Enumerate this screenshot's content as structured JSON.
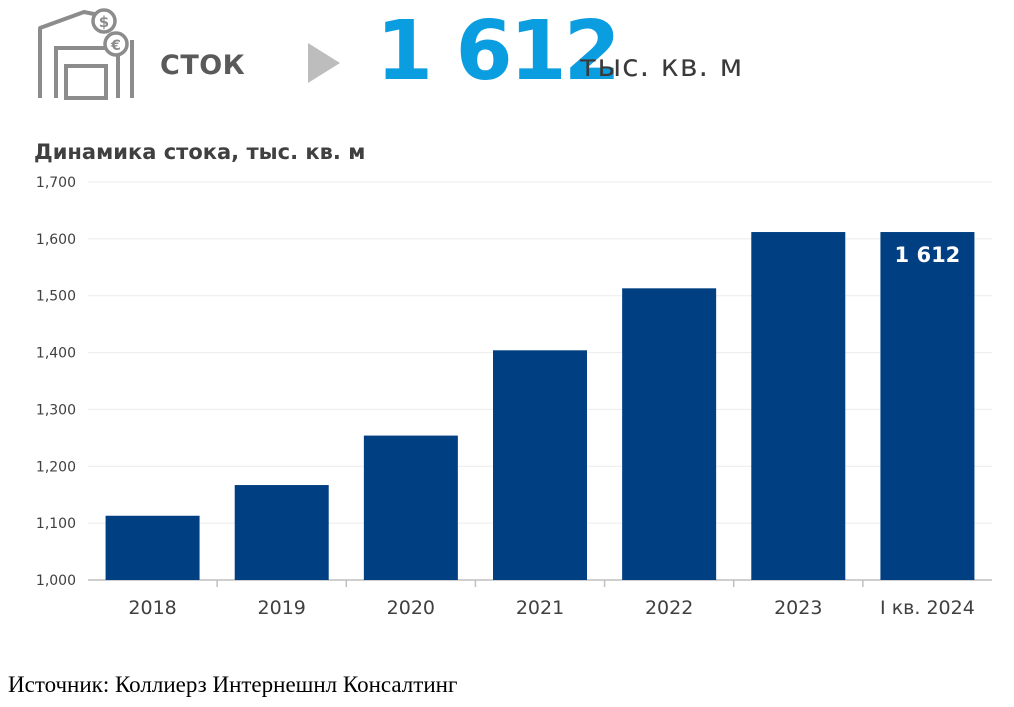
{
  "header": {
    "label": "СТОК",
    "value": "1 612",
    "unit": "тыс. кв. м",
    "icons": [
      "warehouse-icon",
      "dollar-coin-icon",
      "euro-coin-icon",
      "play-arrow-icon"
    ]
  },
  "chart_data": {
    "type": "bar",
    "title": "Динамика стока, тыс. кв. м",
    "categories": [
      "2018",
      "2019",
      "2020",
      "2021",
      "2022",
      "2023",
      "I кв. 2024"
    ],
    "values": [
      1113,
      1167,
      1254,
      1404,
      1513,
      1612,
      1612
    ],
    "ylim": [
      1000,
      1700
    ],
    "yticks": [
      "1,000",
      "1,100",
      "1,200",
      "1,300",
      "1,400",
      "1,500",
      "1,600",
      "1,700"
    ],
    "ytick_values": [
      1000,
      1100,
      1200,
      1300,
      1400,
      1500,
      1600,
      1700
    ],
    "data_label": {
      "index": 6,
      "text": "1 612"
    },
    "grid": true,
    "legend": "none"
  },
  "colors": {
    "bar": "#003f82",
    "accent": "#0a9ee0",
    "grid": "#ececec"
  },
  "source": {
    "prefix": "Источник",
    "text": ": Коллиерз Интернешнл Консалтинг"
  }
}
